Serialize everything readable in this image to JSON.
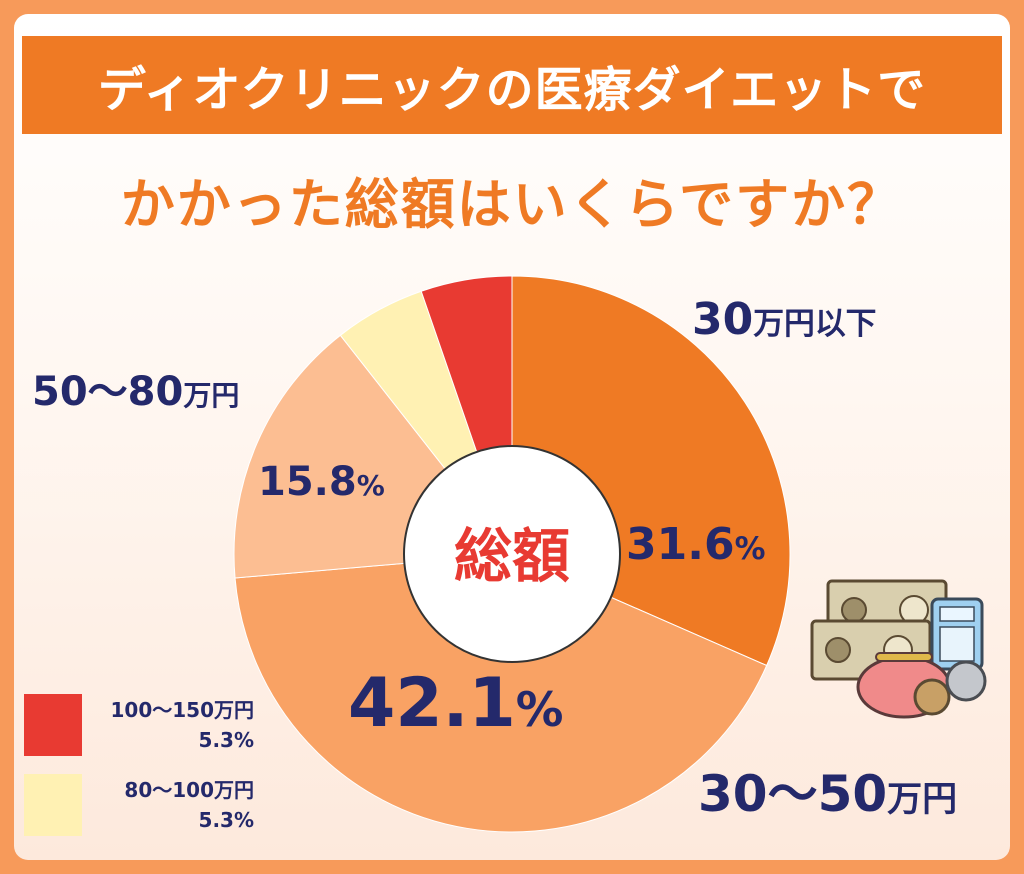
{
  "header": {
    "title": "ディオクリニックの医療ダイエットで",
    "subtitle": "かかった総額はいくらですか？"
  },
  "chart_data": {
    "type": "pie",
    "center_label": "総額",
    "start_angle_deg": 0,
    "direction": "clockwise",
    "slices": [
      {
        "label": "30万円以下",
        "value": 31.6,
        "value_text": "31.6",
        "color": "#ef7a24"
      },
      {
        "label": "30〜50万円",
        "value": 42.1,
        "value_text": "42.1",
        "color": "#f9a264"
      },
      {
        "label": "50〜80万円",
        "value": 15.8,
        "value_text": "15.8",
        "color": "#fcbe92"
      },
      {
        "label": "80〜100万円",
        "value": 5.3,
        "value_text": "5.3",
        "color": "#fff1b3"
      },
      {
        "label": "100〜150万円",
        "value": 5.3,
        "value_text": "5.3",
        "color": "#e83a32"
      }
    ],
    "value_unit": "%",
    "legend": [
      {
        "label": "100〜150万円",
        "value_text": "5.3%",
        "color": "#e83a32"
      },
      {
        "label": "80〜100万円",
        "value_text": "5.3%",
        "color": "#fff1b3"
      }
    ],
    "legend_position": "bottom-left"
  },
  "labels": {
    "s0_main": "30",
    "s0_unit": "万円以下",
    "s1_main": "30〜50",
    "s1_unit": "万円",
    "s2_main": "50〜80",
    "s2_unit": "万円",
    "pct_unit": "%"
  },
  "colors": {
    "accent": "#ef7a24",
    "text_dark": "#24296b",
    "center_text": "#e83a32"
  },
  "decoration": {
    "icon": "money-icon"
  }
}
